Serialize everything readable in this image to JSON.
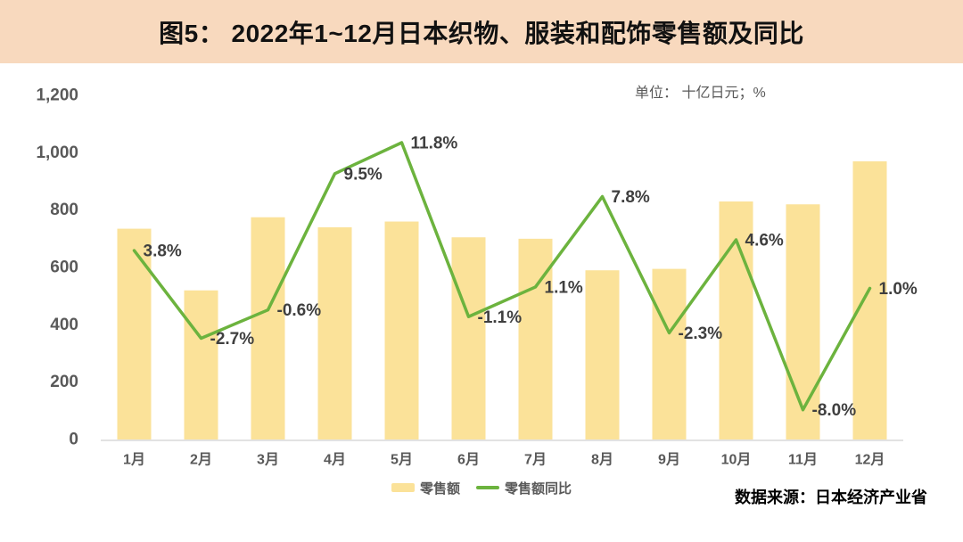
{
  "header": {
    "title": "图5： 2022年1~12月日本织物、服装和配饰零售额及同比",
    "background": "#F8D9BE"
  },
  "chart": {
    "unit_label": "单位： 十亿日元；%"
  },
  "legend": {
    "items": [
      {
        "label": "零售额",
        "type": "bar",
        "color": "#FBE299"
      },
      {
        "label": "零售额同比",
        "type": "line",
        "color": "#6CB33E"
      }
    ]
  },
  "footer": {
    "source": "数据来源：日本经济产业省"
  },
  "colors": {
    "header_bg": "#F8D9BE",
    "bar": "#FBE299",
    "line": "#6CB33E",
    "axis_text": "#595959",
    "data_label": "#3F3F3F",
    "axis_line": "#D9D9D9"
  },
  "chart_data": {
    "type": "bar+line",
    "title": "2022年1~12月日本织物、服装和配饰零售额及同比",
    "categories": [
      "1月",
      "2月",
      "3月",
      "4月",
      "5月",
      "6月",
      "7月",
      "8月",
      "9月",
      "10月",
      "11月",
      "12月"
    ],
    "series": [
      {
        "name": "零售额",
        "type": "bar",
        "axis": "left",
        "color": "#FBE299",
        "values": [
          735,
          520,
          775,
          740,
          760,
          705,
          700,
          590,
          595,
          830,
          820,
          970
        ]
      },
      {
        "name": "零售额同比",
        "type": "line",
        "axis": "right",
        "color": "#6CB33E",
        "values": [
          3.8,
          -2.7,
          -0.6,
          9.5,
          11.8,
          -1.1,
          1.1,
          7.8,
          -2.3,
          4.6,
          -8.0,
          1.0
        ],
        "labels": [
          "3.8%",
          "-2.7%",
          "-0.6%",
          "9.5%",
          "11.8%",
          "-1.1%",
          "1.1%",
          "7.8%",
          "-2.3%",
          "4.6%",
          "-8.0%",
          "1.0%"
        ]
      }
    ],
    "left_axis": {
      "min": 0,
      "max": 1200,
      "tick_values": [
        0,
        200,
        400,
        600,
        800,
        1000,
        1200
      ],
      "ticks": [
        "0",
        "200",
        "400",
        "600",
        "800",
        "1,000",
        "1,200"
      ]
    },
    "right_axis": {
      "min": -10.2,
      "max": 15.3,
      "visible": false
    },
    "grid": false,
    "legend_position": "bottom",
    "unit": "十亿日元；%"
  }
}
